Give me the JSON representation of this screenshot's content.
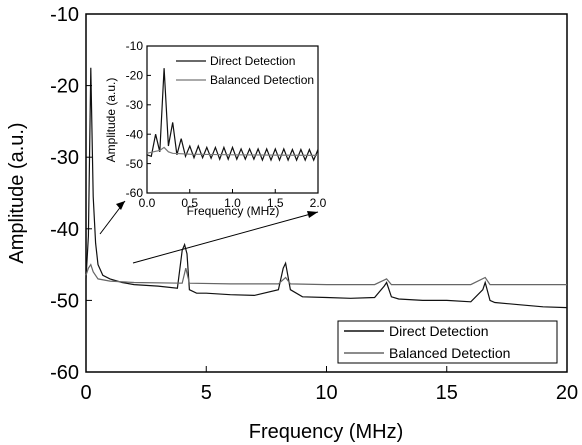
{
  "chart_data": [
    {
      "type": "line",
      "xlabel": "Frequency (MHz)",
      "ylabel": "Amplitude (a.u.)",
      "xlim": [
        0,
        20
      ],
      "ylim": [
        -60,
        -10
      ],
      "x_ticks": [
        "0",
        "5",
        "10",
        "15",
        "20"
      ],
      "y_ticks": [
        "-10",
        "-20",
        "-30",
        "-40",
        "-50",
        "-60"
      ],
      "legend_position": "bottom-right",
      "series": [
        {
          "name": "Direct Detection",
          "color": "#111111",
          "x": [
            0.0,
            0.1,
            0.2,
            0.3,
            0.4,
            0.5,
            0.7,
            1.0,
            1.5,
            2.0,
            3.0,
            3.8,
            4.0,
            4.1,
            4.2,
            4.3,
            4.6,
            5.0,
            6.0,
            7.0,
            8.0,
            8.2,
            8.3,
            8.5,
            9.0,
            10.0,
            11.0,
            12.0,
            12.4,
            12.5,
            12.7,
            13.0,
            14.0,
            15.0,
            16.0,
            16.5,
            16.6,
            16.8,
            17.0,
            18.0,
            19.0,
            20.0
          ],
          "y": [
            -47.0,
            -41.0,
            -17.5,
            -35.5,
            -42.0,
            -45.0,
            -46.5,
            -47.0,
            -47.5,
            -47.8,
            -48.0,
            -48.3,
            -43.0,
            -42.2,
            -43.5,
            -48.5,
            -49.0,
            -49.0,
            -49.2,
            -49.3,
            -48.5,
            -45.5,
            -44.8,
            -48.5,
            -49.5,
            -49.6,
            -49.7,
            -49.6,
            -48.0,
            -47.5,
            -49.5,
            -49.8,
            -50.0,
            -50.0,
            -50.2,
            -48.5,
            -47.5,
            -50.0,
            -50.3,
            -50.6,
            -50.9,
            -51.0
          ]
        },
        {
          "name": "Balanced Detection",
          "color": "#666666",
          "x": [
            0.0,
            0.1,
            0.2,
            0.3,
            0.5,
            1.0,
            2.0,
            4.0,
            4.15,
            4.3,
            6.0,
            8.0,
            8.3,
            8.5,
            10.0,
            12.0,
            12.5,
            12.7,
            14.0,
            16.0,
            16.6,
            16.8,
            18.0,
            20.0
          ],
          "y": [
            -46.5,
            -45.5,
            -45.0,
            -46.0,
            -47.0,
            -47.3,
            -47.5,
            -47.6,
            -45.5,
            -47.6,
            -47.7,
            -47.7,
            -46.8,
            -47.7,
            -47.8,
            -47.8,
            -47.0,
            -47.8,
            -47.8,
            -47.8,
            -46.8,
            -47.8,
            -47.8,
            -47.8
          ]
        }
      ]
    },
    {
      "type": "line",
      "xlabel": "Frequency (MHz)",
      "ylabel": "Amplitude (a.u.)",
      "xlim": [
        0,
        2
      ],
      "ylim": [
        -60,
        -10
      ],
      "x_ticks": [
        "0.0",
        "0.5",
        "1.0",
        "1.5",
        "2.0"
      ],
      "y_ticks": [
        "-10",
        "-20",
        "-30",
        "-40",
        "-50",
        "-60"
      ],
      "legend_position": "top-right",
      "series": [
        {
          "name": "Direct Detection",
          "color": "#111111",
          "x": [
            0.0,
            0.05,
            0.1,
            0.15,
            0.2,
            0.25,
            0.3,
            0.35,
            0.4,
            0.45,
            0.5,
            0.55,
            0.6,
            0.65,
            0.7,
            0.75,
            0.8,
            0.85,
            0.9,
            0.95,
            1.0,
            1.05,
            1.1,
            1.15,
            1.2,
            1.25,
            1.3,
            1.35,
            1.4,
            1.45,
            1.5,
            1.55,
            1.6,
            1.65,
            1.7,
            1.75,
            1.8,
            1.85,
            1.9,
            1.95,
            2.0
          ],
          "y": [
            -47.0,
            -47.5,
            -40.0,
            -46.0,
            -17.5,
            -44.0,
            -36.0,
            -47.0,
            -41.5,
            -47.5,
            -44.0,
            -48.0,
            -44.0,
            -48.0,
            -44.5,
            -48.2,
            -44.5,
            -48.5,
            -44.5,
            -48.5,
            -44.5,
            -48.5,
            -45.0,
            -48.5,
            -45.0,
            -48.5,
            -45.0,
            -48.8,
            -45.0,
            -48.8,
            -45.0,
            -48.8,
            -45.0,
            -48.8,
            -45.2,
            -48.8,
            -45.2,
            -48.8,
            -45.2,
            -48.8,
            -45.2
          ]
        },
        {
          "name": "Balanced Detection",
          "color": "#777777",
          "x": [
            0.0,
            0.1,
            0.15,
            0.2,
            0.25,
            0.3,
            0.5,
            1.0,
            1.5,
            2.0
          ],
          "y": [
            -46.5,
            -45.8,
            -45.5,
            -44.5,
            -46.0,
            -46.5,
            -46.8,
            -47.0,
            -47.1,
            -47.2
          ]
        }
      ]
    }
  ]
}
